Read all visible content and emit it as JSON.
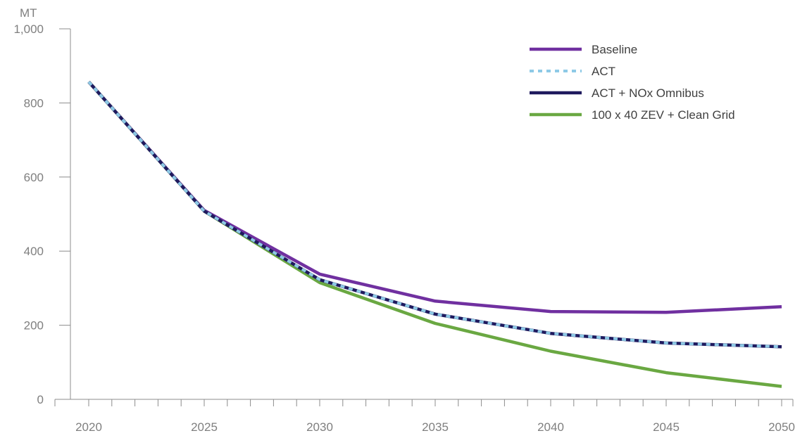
{
  "chart_data": {
    "type": "line",
    "y_unit_label": "MT",
    "x": [
      2020,
      2025,
      2030,
      2035,
      2040,
      2045,
      2050
    ],
    "xlim": [
      2020,
      2050
    ],
    "ylim": [
      0,
      1000
    ],
    "x_ticks": [
      "2020",
      "2025",
      "2030",
      "2035",
      "2040",
      "2045",
      "2050"
    ],
    "y_ticks": [
      {
        "value": 0,
        "label": "0"
      },
      {
        "value": 200,
        "label": "200"
      },
      {
        "value": 400,
        "label": "400"
      },
      {
        "value": 600,
        "label": "600"
      },
      {
        "value": 800,
        "label": "800"
      },
      {
        "value": 1000,
        "label": "1,000"
      }
    ],
    "grid": false,
    "legend_position": "top-right",
    "series": [
      {
        "name": "Baseline",
        "color": "#7030a0",
        "style": "solid",
        "values": [
          857,
          510,
          338,
          265,
          237,
          235,
          250
        ]
      },
      {
        "name": "ACT",
        "color": "#8ecae6",
        "style": "dotted",
        "values": [
          857,
          508,
          323,
          230,
          178,
          152,
          142
        ]
      },
      {
        "name": "ACT + NOx Omnibus",
        "color": "#1f1a5e",
        "style": "dashed-overlay",
        "values": [
          857,
          508,
          323,
          230,
          178,
          152,
          142
        ]
      },
      {
        "name": "100 x 40 ZEV + Clean Grid",
        "color": "#6aa842",
        "style": "solid",
        "values": [
          857,
          508,
          315,
          205,
          130,
          72,
          35
        ]
      }
    ]
  }
}
